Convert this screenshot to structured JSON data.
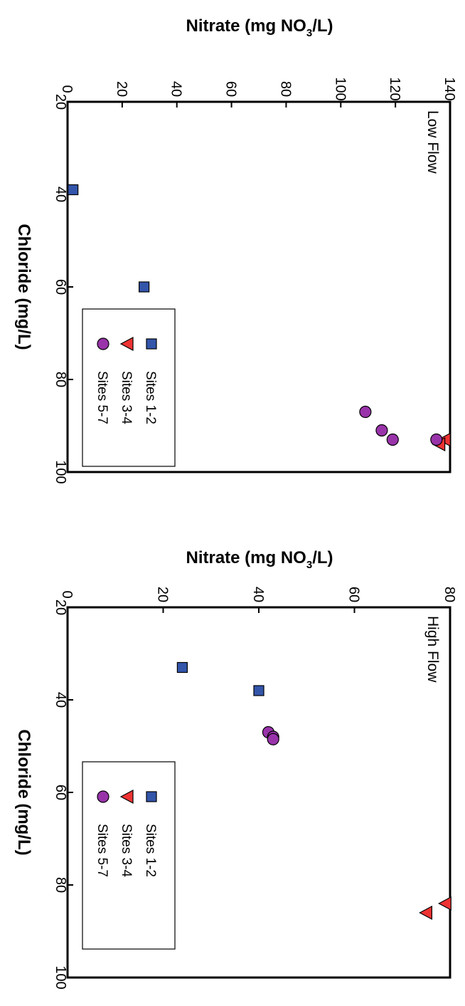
{
  "chart_data": [
    {
      "type": "scatter",
      "title": "Low Flow",
      "xlabel": "Chloride (mg/L)",
      "ylabel_parts": [
        "Nitrate (mg NO",
        "3",
        "/L)"
      ],
      "xlim": [
        20,
        100
      ],
      "ylim": [
        0,
        140
      ],
      "xticks": [
        "20",
        "40",
        "60",
        "80",
        "100"
      ],
      "yticks": [
        "0",
        "20",
        "40",
        "60",
        "80",
        "100",
        "120",
        "140"
      ],
      "grid": false,
      "legend_position": "bottom-right",
      "series": [
        {
          "name": "Sites 1-2",
          "marker": "square",
          "color": "#3355aa",
          "points": [
            {
              "x": 39,
              "y": 2
            },
            {
              "x": 60,
              "y": 28
            },
            {
              "x": 73,
              "y": 31
            }
          ]
        },
        {
          "name": "Sites 3-4",
          "marker": "triangle",
          "color": "#ee3333",
          "points": [
            {
              "x": 93,
              "y": 138
            },
            {
              "x": 94,
              "y": 136
            }
          ]
        },
        {
          "name": "Sites 5-7",
          "marker": "circle",
          "color": "#9933aa",
          "points": [
            {
              "x": 87,
              "y": 109
            },
            {
              "x": 91,
              "y": 115
            },
            {
              "x": 93,
              "y": 119
            },
            {
              "x": 93,
              "y": 135
            }
          ]
        }
      ]
    },
    {
      "type": "scatter",
      "title": "High Flow",
      "xlabel": "Chloride (mg/L)",
      "ylabel_parts": [
        "Nitrate (mg NO",
        "3",
        "/L)"
      ],
      "xlim": [
        20,
        100
      ],
      "ylim": [
        0,
        80
      ],
      "xticks": [
        "20",
        "40",
        "60",
        "80",
        "100"
      ],
      "yticks": [
        "0",
        "20",
        "40",
        "60",
        "80"
      ],
      "grid": false,
      "legend_position": "bottom-right",
      "series": [
        {
          "name": "Sites 1-2",
          "marker": "square",
          "color": "#3355aa",
          "points": [
            {
              "x": 33,
              "y": 24
            },
            {
              "x": 38,
              "y": 40
            }
          ]
        },
        {
          "name": "Sites 3-4",
          "marker": "triangle",
          "color": "#ee3333",
          "points": [
            {
              "x": 84,
              "y": 79
            },
            {
              "x": 86,
              "y": 75
            }
          ]
        },
        {
          "name": "Sites 5-7",
          "marker": "circle",
          "color": "#9933aa",
          "points": [
            {
              "x": 47,
              "y": 42
            },
            {
              "x": 48,
              "y": 43
            },
            {
              "x": 48.5,
              "y": 43
            }
          ]
        }
      ]
    }
  ]
}
